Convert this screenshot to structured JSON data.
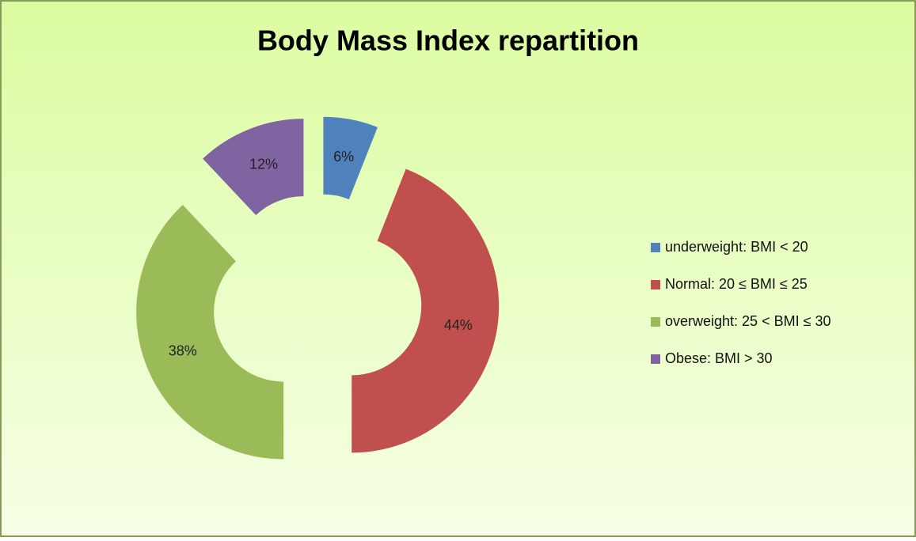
{
  "chart_data": {
    "type": "donut",
    "title": "Body Mass Index repartition",
    "categories": [
      "underweight: BMI < 20",
      "Normal: 20 ≤ BMI ≤ 25",
      "overweight: 25 < BMI ≤ 30",
      "Obese: BMI > 30"
    ],
    "values": [
      6,
      44,
      38,
      12
    ],
    "value_labels": [
      "6%",
      "44%",
      "38%",
      "12%"
    ],
    "colors": [
      "#4f81bd",
      "#c0504d",
      "#9bbb59",
      "#8064a2"
    ],
    "legend": "right"
  }
}
